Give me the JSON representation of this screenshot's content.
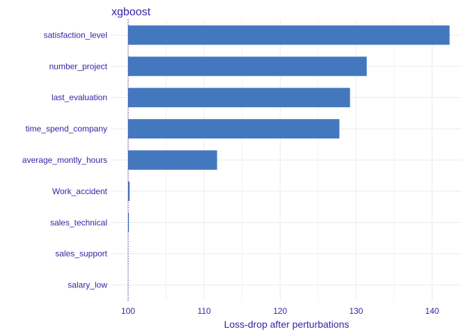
{
  "chart_data": {
    "type": "bar",
    "orientation": "horizontal",
    "title": "xgboost",
    "xlabel": "Loss-drop after perturbations",
    "ylabel": "",
    "baseline": 100,
    "xlim": [
      97.8,
      143.9
    ],
    "xticks": [
      100,
      110,
      120,
      130,
      140
    ],
    "grid": true,
    "categories": [
      "satisfaction_level",
      "number_project",
      "last_evaluation",
      "time_spend_company",
      "average_montly_hours",
      "Work_accident",
      "sales_technical",
      "sales_support",
      "salary_low"
    ],
    "values": [
      142.3,
      131.4,
      129.2,
      127.8,
      111.7,
      100.2,
      100.1,
      100.0,
      100.0
    ],
    "colors": {
      "bar": "#4378bf",
      "text": "#371ea3",
      "grid": "#ebebeb"
    }
  }
}
